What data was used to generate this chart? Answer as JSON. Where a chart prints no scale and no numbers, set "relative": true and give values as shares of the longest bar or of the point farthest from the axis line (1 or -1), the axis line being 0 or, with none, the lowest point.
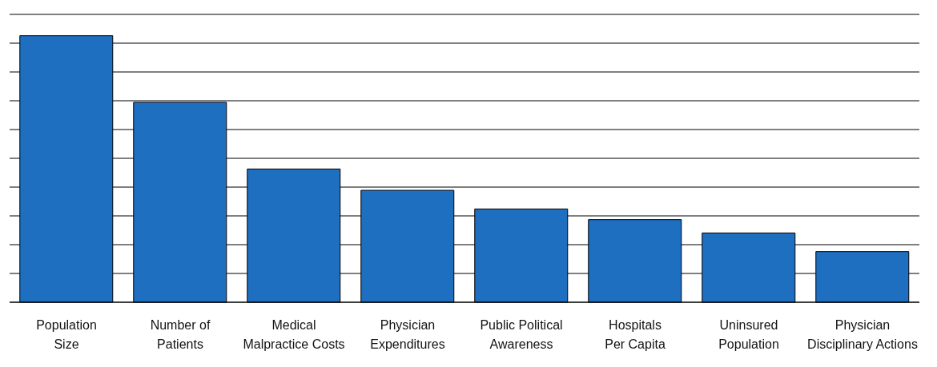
{
  "chart_data": {
    "type": "bar",
    "relative": true,
    "categories": [
      "Population Size",
      "Number of Patients",
      "Medical Malpractice Costs",
      "Physician Expenditures",
      "Public Political Awareness",
      "Hospitals Per Capita",
      "Uninsured Population",
      "Physician Disciplinary Actions"
    ],
    "values": [
      1,
      0.75,
      0.5,
      0.42,
      0.35,
      0.31,
      0.26,
      0.19
    ],
    "color": "#1f6fc0",
    "grid": "y"
  }
}
